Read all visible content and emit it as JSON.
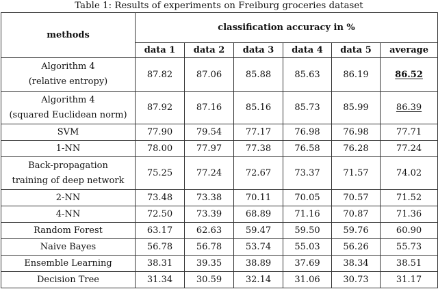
{
  "caption": "Table 1: Results of experiments on Freiburg groceries dataset",
  "header": {
    "methods": "methods",
    "group": "classification accuracy in %",
    "columns": [
      "data 1",
      "data 2",
      "data 3",
      "data 4",
      "data 5",
      "average"
    ]
  },
  "rows": [
    {
      "method": [
        "Algorithm 4",
        "(relative entropy)"
      ],
      "values": [
        "87.82",
        "87.06",
        "85.88",
        "85.63",
        "86.19"
      ],
      "average": "86.52"
    },
    {
      "method": [
        "Algorithm 4",
        "(squared Euclidean norm)"
      ],
      "values": [
        "87.92",
        "87.16",
        "85.16",
        "85.73",
        "85.99"
      ],
      "average": "86.39"
    },
    {
      "method": [
        "SVM"
      ],
      "values": [
        "77.90",
        "79.54",
        "77.17",
        "76.98",
        "76.98"
      ],
      "average": "77.71"
    },
    {
      "method": [
        "1-NN"
      ],
      "values": [
        "78.00",
        "77.97",
        "77.38",
        "76.58",
        "76.28"
      ],
      "average": "77.24"
    },
    {
      "method": [
        "Back-propagation",
        "training of deep network"
      ],
      "values": [
        "75.25",
        "77.24",
        "72.67",
        "73.37",
        "71.57"
      ],
      "average": "74.02"
    },
    {
      "method": [
        "2-NN"
      ],
      "values": [
        "73.48",
        "73.38",
        "70.11",
        "70.05",
        "70.57"
      ],
      "average": "71.52"
    },
    {
      "method": [
        "4-NN"
      ],
      "values": [
        "72.50",
        "73.39",
        "68.89",
        "71.16",
        "70.87"
      ],
      "average": "71.36"
    },
    {
      "method": [
        "Random Forest"
      ],
      "values": [
        "63.17",
        "62.63",
        "59.47",
        "59.50",
        "59.76"
      ],
      "average": "60.90"
    },
    {
      "method": [
        "Naive Bayes"
      ],
      "values": [
        "56.78",
        "56.78",
        "53.74",
        "55.03",
        "56.26"
      ],
      "average": "55.73"
    },
    {
      "method": [
        "Ensemble Learning"
      ],
      "values": [
        "38.31",
        "39.35",
        "38.89",
        "37.69",
        "38.34"
      ],
      "average": "38.51"
    },
    {
      "method": [
        "Decision Tree"
      ],
      "values": [
        "31.34",
        "30.59",
        "32.14",
        "31.06",
        "30.73"
      ],
      "average": "31.17"
    }
  ]
}
